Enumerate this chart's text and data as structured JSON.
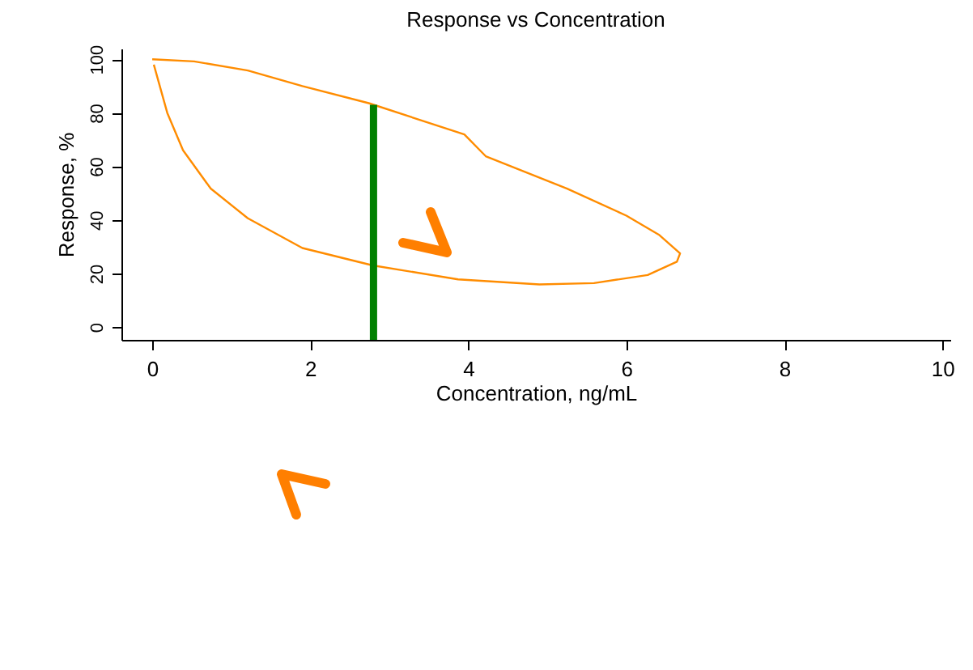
{
  "chart_data": {
    "type": "line",
    "title": "Response vs Concentration",
    "xlabel": "Concentration, ng/mL",
    "ylabel": "Response, %",
    "xlim": [
      -0.39,
      10.1
    ],
    "ylim": [
      -4.8,
      104
    ],
    "xticks": [
      0,
      2,
      4,
      6,
      8,
      10
    ],
    "yticks": [
      0,
      20,
      40,
      60,
      80,
      100
    ],
    "grid": false,
    "marker": "none",
    "line_style": "solid",
    "series": [
      {
        "color": "#ff8c00",
        "x": [
          0,
          0.53,
          1.21,
          1.9,
          2.74,
          3.95,
          4.22,
          5.25,
          6.0,
          6.41,
          6.68,
          6.64,
          6.27,
          5.59,
          4.9,
          3.87,
          2.79,
          1.9,
          1.21,
          0.74,
          0.39,
          0.19,
          0.02
        ],
        "values": [
          100,
          99.2,
          95.8,
          90,
          83.6,
          71.9,
          63.8,
          51.7,
          41.6,
          34.5,
          27.5,
          24.4,
          19.4,
          16.4,
          15.9,
          17.8,
          23,
          29.5,
          40.6,
          51.7,
          66,
          80,
          98
        ]
      },
      {
        "color": "#008000",
        "x": [
          2.8,
          2.8
        ],
        "values": [
          83,
          -4.8
        ]
      }
    ]
  }
}
